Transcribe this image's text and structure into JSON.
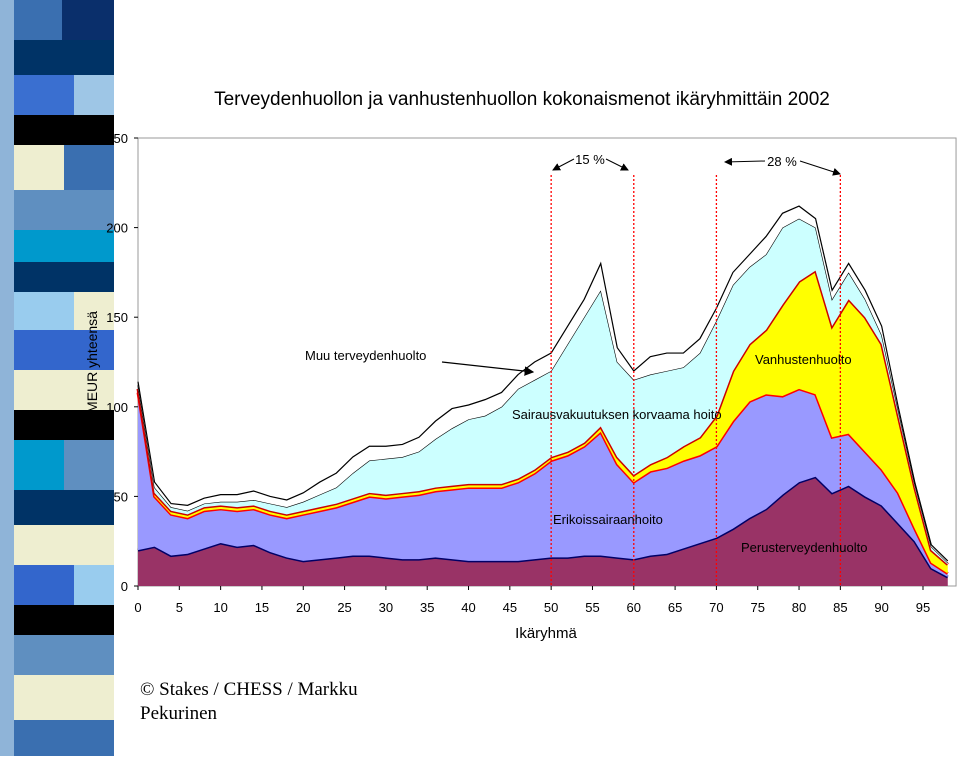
{
  "chart_data": {
    "type": "stacked-area",
    "title": "Terveydenhuollon ja vanhustenhuollon kokonaismenot ikäryhmittäin 2002",
    "x_label": "Ikäryhmä",
    "y_label": "MEUR yhteensä",
    "x": [
      0,
      2,
      4,
      6,
      8,
      10,
      12,
      14,
      16,
      18,
      20,
      22,
      24,
      26,
      28,
      30,
      32,
      34,
      36,
      38,
      40,
      42,
      44,
      46,
      48,
      50,
      52,
      54,
      56,
      58,
      60,
      62,
      64,
      66,
      68,
      70,
      72,
      74,
      76,
      78,
      80,
      82,
      84,
      86,
      88,
      90,
      92,
      94,
      96,
      98
    ],
    "series": [
      {
        "name": "Perusterveydenhuolto",
        "color": "#993366",
        "edge_color": "#000066",
        "values": [
          20,
          22,
          17,
          18,
          21,
          24,
          22,
          23,
          19,
          16,
          14,
          15,
          16,
          17,
          17,
          16,
          15,
          15,
          16,
          15,
          14,
          14,
          14,
          14,
          15,
          16,
          16,
          17,
          17,
          16,
          15,
          17,
          18,
          21,
          24,
          27,
          32,
          38,
          43,
          51,
          58,
          61,
          52,
          56,
          50,
          45,
          35,
          25,
          10,
          5
        ]
      },
      {
        "name": "Erikoissairaanhoito",
        "color": "#9999ff",
        "edge_color": "#ff0000",
        "values": [
          88,
          28,
          23,
          20,
          21,
          19,
          20,
          20,
          21,
          22,
          26,
          27,
          28,
          30,
          33,
          33,
          35,
          36,
          37,
          39,
          41,
          41,
          41,
          44,
          48,
          54,
          57,
          61,
          69,
          52,
          43,
          47,
          48,
          49,
          49,
          51,
          60,
          65,
          64,
          55,
          52,
          46,
          31,
          29,
          25,
          20,
          17,
          7,
          3,
          2
        ]
      },
      {
        "name": "Vanhustenhuolto",
        "color": "#ffff00",
        "edge_color": "#cc0000",
        "values": [
          2,
          2,
          2,
          2,
          2,
          2,
          2,
          2,
          2,
          2,
          2,
          2,
          2,
          2,
          2,
          2,
          2,
          2,
          2,
          2,
          2,
          2,
          2,
          2,
          2,
          2,
          2,
          2,
          3,
          4,
          4,
          4,
          6,
          8,
          10,
          17,
          28,
          32,
          36,
          51,
          60,
          69,
          62,
          75,
          75,
          70,
          43,
          23,
          7,
          5
        ]
      },
      {
        "name": "Sairausvakuutuksen korvaama hoito",
        "color": "#ccffff",
        "edge_color": "#000000",
        "values": [
          2,
          3,
          2,
          2,
          2,
          2,
          3,
          3,
          4,
          4,
          5,
          7,
          9,
          14,
          18,
          20,
          20,
          22,
          27,
          32,
          36,
          38,
          43,
          50,
          50,
          48,
          60,
          70,
          76,
          53,
          53,
          50,
          48,
          44,
          47,
          53,
          48,
          43,
          42,
          43,
          35,
          24,
          15,
          15,
          10,
          5,
          3,
          2,
          2,
          1
        ]
      },
      {
        "name": "Muu terveydenhuolto",
        "color": "#ffffff",
        "edge_color": "#000000",
        "values": [
          2,
          3,
          2,
          3,
          3,
          4,
          4,
          5,
          4,
          4,
          5,
          7,
          8,
          9,
          8,
          7,
          7,
          8,
          10,
          11,
          8,
          9,
          8,
          8,
          10,
          10,
          10,
          10,
          15,
          8,
          5,
          10,
          10,
          8,
          8,
          7,
          7,
          7,
          10,
          8,
          7,
          5,
          5,
          5,
          5,
          5,
          2,
          1,
          1,
          1
        ]
      }
    ],
    "xlim": [
      0,
      99
    ],
    "ylim": [
      0,
      250
    ],
    "xticks": [
      0,
      5,
      10,
      15,
      20,
      25,
      30,
      35,
      40,
      45,
      50,
      55,
      60,
      65,
      70,
      75,
      80,
      85,
      90,
      95
    ],
    "yticks": [
      0,
      50,
      100,
      150,
      200,
      250
    ],
    "reference_lines": [
      50,
      60,
      70,
      85
    ],
    "annotations": [
      "15 %",
      "28 %"
    ]
  },
  "footer": "© Stakes / CHESS / Markku Pekurinen"
}
